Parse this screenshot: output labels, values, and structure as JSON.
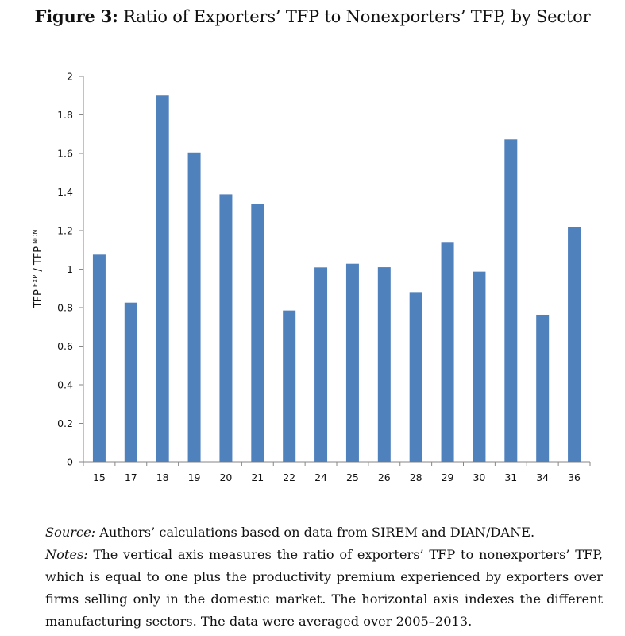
{
  "figure": {
    "label": "Figure 3:",
    "title": "Ratio of Exporters’ TFP to Nonexporters’ TFP, by Sector"
  },
  "caption": {
    "source_label": "Source:",
    "source_text": "Authors’ calculations based on data from SIREM and DIAN/DANE.",
    "notes_label": "Notes:",
    "notes_text": "The vertical axis measures the ratio of exporters’ TFP to nonexporters’ TFP, which is equal to one plus the productivity premium experienced by exporters over firms selling only in the domestic market. The horizontal axis indexes the different manufacturing sectors. The data were averaged over 2005–2013."
  },
  "chart_data": {
    "type": "bar",
    "title": "Ratio of Exporters’ TFP to Nonexporters’ TFP, by Sector",
    "xlabel": "",
    "ylabel": {
      "main": "TFP",
      "sup1": "EXP",
      "mid": " / TFP",
      "sup2": "NON"
    },
    "categories": [
      "15",
      "17",
      "18",
      "19",
      "20",
      "21",
      "22",
      "24",
      "25",
      "26",
      "28",
      "29",
      "30",
      "31",
      "34",
      "36"
    ],
    "values": [
      1.075,
      0.826,
      1.9,
      1.605,
      1.388,
      1.34,
      0.785,
      1.009,
      1.028,
      1.01,
      0.881,
      1.137,
      0.987,
      1.673,
      0.763,
      1.218
    ],
    "ylim": [
      0,
      2
    ],
    "yticks": [
      0,
      0.2,
      0.4,
      0.6,
      0.8,
      1,
      1.2,
      1.4,
      1.6,
      1.8,
      2
    ],
    "ytick_labels": [
      "0",
      "0.2",
      "0.4",
      "0.6",
      "0.8",
      "1",
      "1.2",
      "1.4",
      "1.6",
      "1.8",
      "2"
    ],
    "grid": false,
    "legend": "none",
    "bar_color": "#4F81BD",
    "axis_color": "#868686"
  }
}
